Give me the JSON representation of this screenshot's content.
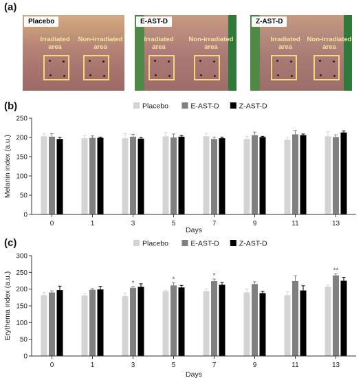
{
  "panels": {
    "a": "(a)",
    "b": "(b)",
    "c": "(c)"
  },
  "photos": [
    {
      "label": "Placebo",
      "irradiated": [
        "Irradiated",
        "area"
      ],
      "non_irradiated": [
        "Non-irradiated",
        "area"
      ]
    },
    {
      "label": "E-AST-D",
      "irradiated": [
        "Irradiated",
        "area"
      ],
      "non_irradiated": [
        "Non-irradiated",
        "area"
      ]
    },
    {
      "label": "Z-AST-D",
      "irradiated": [
        "Irradiated",
        "area"
      ],
      "non_irradiated": [
        "Non-irradiated",
        "area"
      ]
    }
  ],
  "colors": {
    "Placebo": "#d4d4d4",
    "E-AST-D": "#808080",
    "Z-AST-D": "#000000"
  },
  "chart_data": [
    {
      "type": "bar",
      "xlabel": "Days",
      "ylabel": "Melanin index (a.u.)",
      "categories": [
        "0",
        "1",
        "3",
        "5",
        "7",
        "9",
        "11",
        "13"
      ],
      "ylim": [
        0,
        250
      ],
      "yticks": [
        0,
        50,
        100,
        150,
        200,
        250
      ],
      "legend_position": "top-center",
      "series": [
        {
          "name": "Placebo",
          "values": [
            203,
            198,
            198,
            203,
            203,
            196,
            194,
            203
          ],
          "errors": [
            7,
            7,
            12,
            10,
            8,
            7,
            6,
            12
          ]
        },
        {
          "name": "E-AST-D",
          "values": [
            202,
            199,
            202,
            200,
            196,
            206,
            208,
            201
          ],
          "errors": [
            8,
            5,
            6,
            9,
            5,
            8,
            10,
            6
          ]
        },
        {
          "name": "Z-AST-D",
          "values": [
            196,
            199,
            197,
            202,
            198,
            201,
            206,
            213
          ],
          "errors": [
            4,
            2,
            3,
            3,
            3,
            2,
            3,
            4
          ]
        }
      ],
      "annotations": []
    },
    {
      "type": "bar",
      "xlabel": "Days",
      "ylabel": "Erythema index (a.u.)",
      "categories": [
        "0",
        "1",
        "3",
        "5",
        "7",
        "9",
        "11",
        "13"
      ],
      "ylim": [
        0,
        300
      ],
      "yticks": [
        0,
        50,
        100,
        150,
        200,
        250,
        300
      ],
      "legend_position": "top-center",
      "series": [
        {
          "name": "Placebo",
          "values": [
            182,
            181,
            179,
            193,
            194,
            190,
            182,
            207
          ],
          "errors": [
            8,
            6,
            9,
            3,
            7,
            10,
            10,
            5
          ]
        },
        {
          "name": "E-AST-D",
          "values": [
            190,
            198,
            204,
            211,
            224,
            215,
            224,
            241
          ],
          "errors": [
            5,
            3,
            4,
            8,
            6,
            7,
            16,
            5
          ]
        },
        {
          "name": "Z-AST-D",
          "values": [
            197,
            199,
            207,
            205,
            213,
            188,
            196,
            225
          ],
          "errors": [
            12,
            9,
            9,
            6,
            7,
            5,
            14,
            10
          ]
        }
      ],
      "annotations": [
        {
          "category": "3",
          "series": "E-AST-D",
          "text": "*"
        },
        {
          "category": "5",
          "series": "E-AST-D",
          "text": "*"
        },
        {
          "category": "7",
          "series": "E-AST-D",
          "text": "*"
        },
        {
          "category": "13",
          "series": "E-AST-D",
          "text": "**"
        }
      ]
    }
  ]
}
